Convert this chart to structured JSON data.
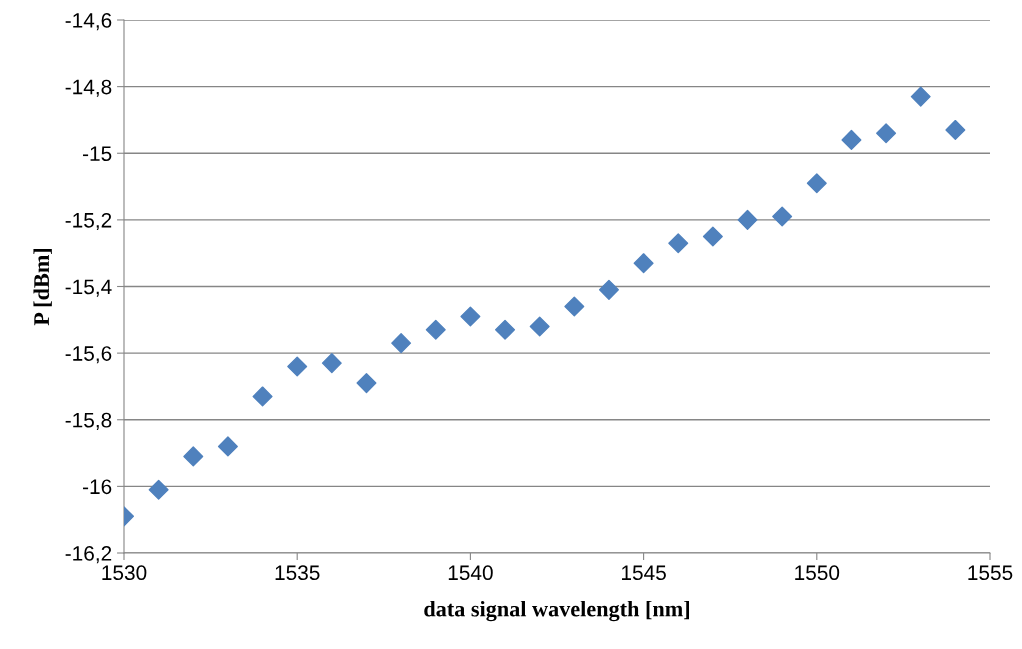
{
  "chart_data": {
    "type": "scatter",
    "xlabel": "data signal wavelength [nm]",
    "ylabel": "P [dBm]",
    "x": [
      1530,
      1531,
      1532,
      1533,
      1534,
      1535,
      1536,
      1537,
      1538,
      1539,
      1540,
      1541,
      1542,
      1543,
      1544,
      1545,
      1546,
      1547,
      1548,
      1549,
      1550,
      1551,
      1552,
      1553,
      1554
    ],
    "series": [
      {
        "color": "#4f81bd",
        "values": [
          -16.09,
          -16.01,
          -15.91,
          -15.88,
          -15.73,
          -15.64,
          -15.63,
          -15.69,
          -15.57,
          -15.53,
          -15.49,
          -15.53,
          -15.52,
          -15.46,
          -15.41,
          -15.33,
          -15.27,
          -15.25,
          -15.2,
          -15.19,
          -15.09,
          -14.96,
          -14.94,
          -14.83,
          -14.93
        ]
      }
    ],
    "xlim": [
      1530,
      1555
    ],
    "xticks": [
      1530,
      1535,
      1540,
      1545,
      1550,
      1555
    ],
    "ylim": [
      -16.2,
      -14.6
    ],
    "yticks": [
      {
        "value": -16.2,
        "label": "-16,2"
      },
      {
        "value": -16,
        "label": "-16"
      },
      {
        "value": -15.8,
        "label": "-15,8"
      },
      {
        "value": -15.6,
        "label": "-15,6"
      },
      {
        "value": -15.4,
        "label": "-15,4"
      },
      {
        "value": -15.2,
        "label": "-15,2"
      },
      {
        "value": -15,
        "label": "-15"
      },
      {
        "value": -14.8,
        "label": "-14,8"
      },
      {
        "value": -14.6,
        "label": "-14,6"
      }
    ],
    "grid": "y",
    "marker": "diamond",
    "legend": false
  }
}
